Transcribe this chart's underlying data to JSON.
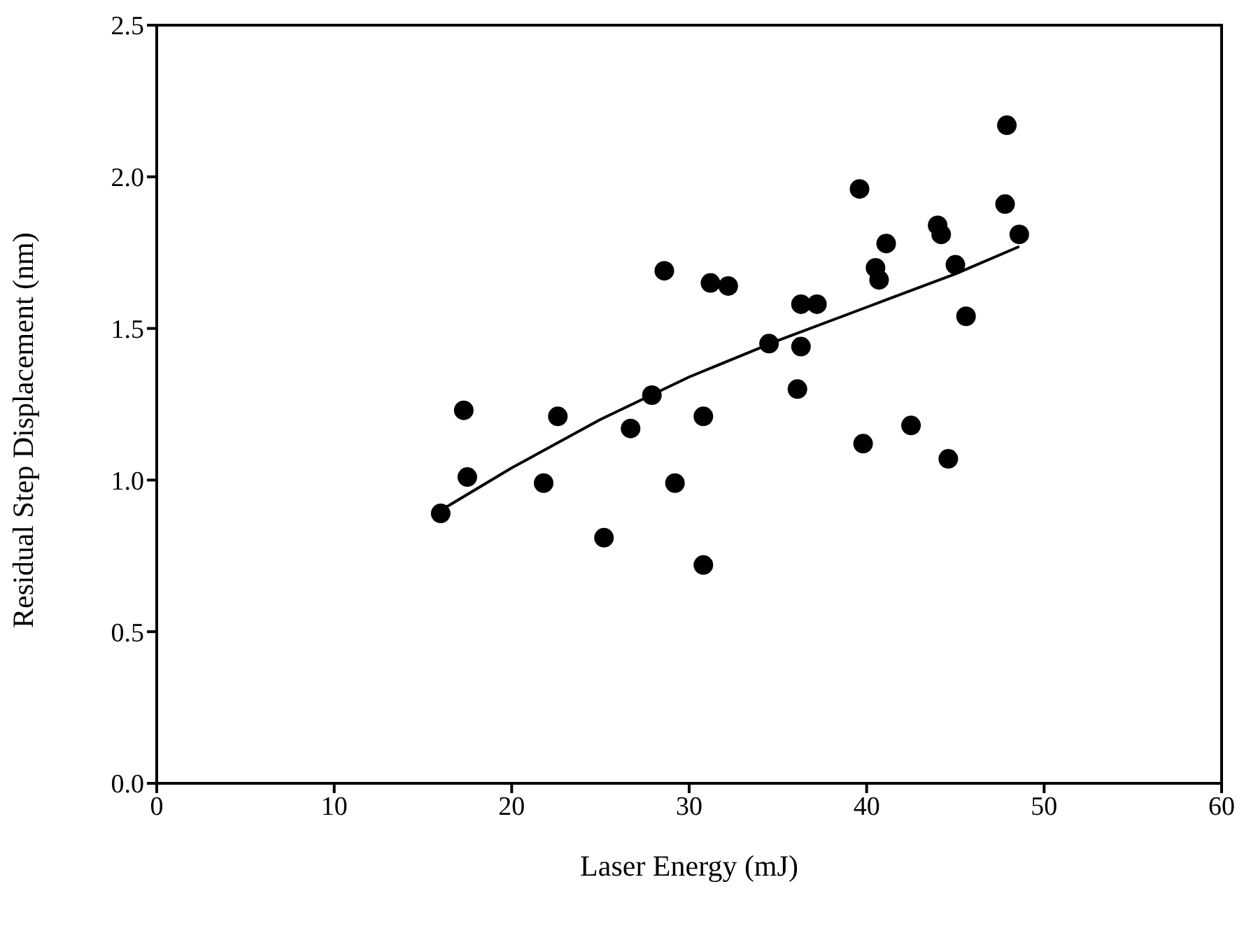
{
  "chart_data": {
    "type": "scatter",
    "xlabel": "Laser Energy (mJ)",
    "ylabel": "Residual Step Displacement (nm)",
    "xlim": [
      0,
      60
    ],
    "xticks": [
      0,
      10,
      20,
      30,
      40,
      50,
      60
    ],
    "ylim": [
      0,
      2.5
    ],
    "yticks": [
      {
        "value": 0,
        "label": "0.0"
      },
      0.5,
      {
        "value": 1,
        "label": "1.0"
      },
      1.5,
      {
        "value": 2,
        "label": "2.0"
      },
      2.5
    ],
    "grid": false,
    "legend": false,
    "marker": "circle",
    "series": [
      {
        "color": "#000000",
        "x": [
          16.0,
          17.3,
          17.5,
          21.8,
          22.6,
          25.2,
          26.7,
          27.9,
          28.6,
          29.2,
          30.8,
          30.8,
          31.2,
          32.2,
          34.5,
          36.1,
          36.3,
          36.3,
          37.2,
          39.6,
          39.8,
          40.5,
          40.7,
          41.1,
          42.5,
          44.0,
          44.2,
          44.6,
          45.0,
          45.6,
          47.9,
          47.8,
          48.6
        ],
        "values": [
          0.89,
          1.23,
          1.01,
          0.99,
          1.21,
          0.81,
          1.17,
          1.28,
          1.69,
          0.99,
          0.72,
          1.21,
          1.65,
          1.64,
          1.45,
          1.3,
          1.58,
          1.44,
          1.58,
          1.96,
          1.12,
          1.7,
          1.66,
          1.78,
          1.18,
          1.84,
          1.81,
          1.07,
          1.71,
          1.54,
          2.17,
          1.91,
          1.81
        ]
      },
      {
        "type": "line",
        "color": "#000000",
        "marker": "none",
        "line_style": "solid",
        "x": [
          16,
          20,
          25,
          30,
          35,
          40,
          45,
          48.6
        ],
        "values": [
          0.9,
          1.04,
          1.2,
          1.34,
          1.46,
          1.57,
          1.68,
          1.77
        ]
      }
    ]
  }
}
